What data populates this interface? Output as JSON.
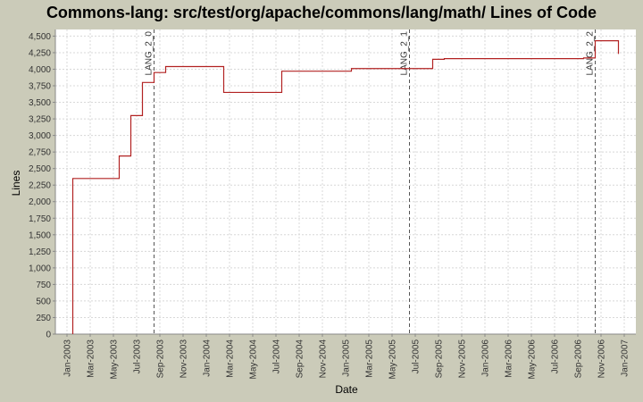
{
  "chart_data": {
    "type": "line",
    "step": true,
    "title": "Commons-lang: src/test/org/apache/commons/lang/math/ Lines of Code",
    "x_label": "Date",
    "y_label": "Lines",
    "grid": true,
    "xlim": [
      "2002-12",
      "2007-02"
    ],
    "ylim": [
      0,
      4600
    ],
    "xticks": [
      {
        "value": "2003-01",
        "label": "Jan-2003"
      },
      {
        "value": "2003-03",
        "label": "Mar-2003"
      },
      {
        "value": "2003-05",
        "label": "May-2003"
      },
      {
        "value": "2003-07",
        "label": "Jul-2003"
      },
      {
        "value": "2003-09",
        "label": "Sep-2003"
      },
      {
        "value": "2003-11",
        "label": "Nov-2003"
      },
      {
        "value": "2004-01",
        "label": "Jan-2004"
      },
      {
        "value": "2004-03",
        "label": "Mar-2004"
      },
      {
        "value": "2004-05",
        "label": "May-2004"
      },
      {
        "value": "2004-07",
        "label": "Jul-2004"
      },
      {
        "value": "2004-09",
        "label": "Sep-2004"
      },
      {
        "value": "2004-11",
        "label": "Nov-2004"
      },
      {
        "value": "2005-01",
        "label": "Jan-2005"
      },
      {
        "value": "2005-03",
        "label": "Mar-2005"
      },
      {
        "value": "2005-05",
        "label": "May-2005"
      },
      {
        "value": "2005-07",
        "label": "Jul-2005"
      },
      {
        "value": "2005-09",
        "label": "Sep-2005"
      },
      {
        "value": "2005-11",
        "label": "Nov-2005"
      },
      {
        "value": "2006-01",
        "label": "Jan-2006"
      },
      {
        "value": "2006-03",
        "label": "Mar-2006"
      },
      {
        "value": "2006-05",
        "label": "May-2006"
      },
      {
        "value": "2006-07",
        "label": "Jul-2006"
      },
      {
        "value": "2006-09",
        "label": "Sep-2006"
      },
      {
        "value": "2006-11",
        "label": "Nov-2006"
      },
      {
        "value": "2007-01",
        "label": "Jan-2007"
      }
    ],
    "yticks": [
      0,
      250,
      500,
      750,
      {
        "value": 1000,
        "label": "1,000"
      },
      {
        "value": 1250,
        "label": "1,250"
      },
      {
        "value": 1500,
        "label": "1,500"
      },
      {
        "value": 1750,
        "label": "1,750"
      },
      {
        "value": 2000,
        "label": "2,000"
      },
      {
        "value": 2250,
        "label": "2,250"
      },
      {
        "value": 2500,
        "label": "2,500"
      },
      {
        "value": 2750,
        "label": "2,750"
      },
      {
        "value": 3000,
        "label": "3,000"
      },
      {
        "value": 3250,
        "label": "3,250"
      },
      {
        "value": 3500,
        "label": "3,500"
      },
      {
        "value": 3750,
        "label": "3,750"
      },
      {
        "value": 4000,
        "label": "4,000"
      },
      {
        "value": 4250,
        "label": "4,250"
      },
      {
        "value": 4500,
        "label": "4,500"
      }
    ],
    "x": [
      "2003-01",
      "2003-01",
      "2003-05",
      "2003-06",
      "2003-07",
      "2003-07",
      "2003-07",
      "2003-08",
      "2003-09",
      "2003-09",
      "2004-02",
      "2004-07",
      "2005-01",
      "2005-08",
      "2005-09",
      "2006-09",
      "2006-10",
      "2006-12"
    ],
    "values": [
      0,
      2350,
      2690,
      3300,
      3600,
      3700,
      3800,
      3950,
      4000,
      4040,
      3650,
      3970,
      4010,
      4150,
      4160,
      4170,
      4430,
      4230
    ],
    "color": "#b22222",
    "markers": [
      {
        "x": "2003-08",
        "label": "LANG_2_0"
      },
      {
        "x": "2005-06",
        "label": "LANG_2_1"
      },
      {
        "x": "2006-10",
        "label": "LANG_2_2"
      }
    ]
  }
}
